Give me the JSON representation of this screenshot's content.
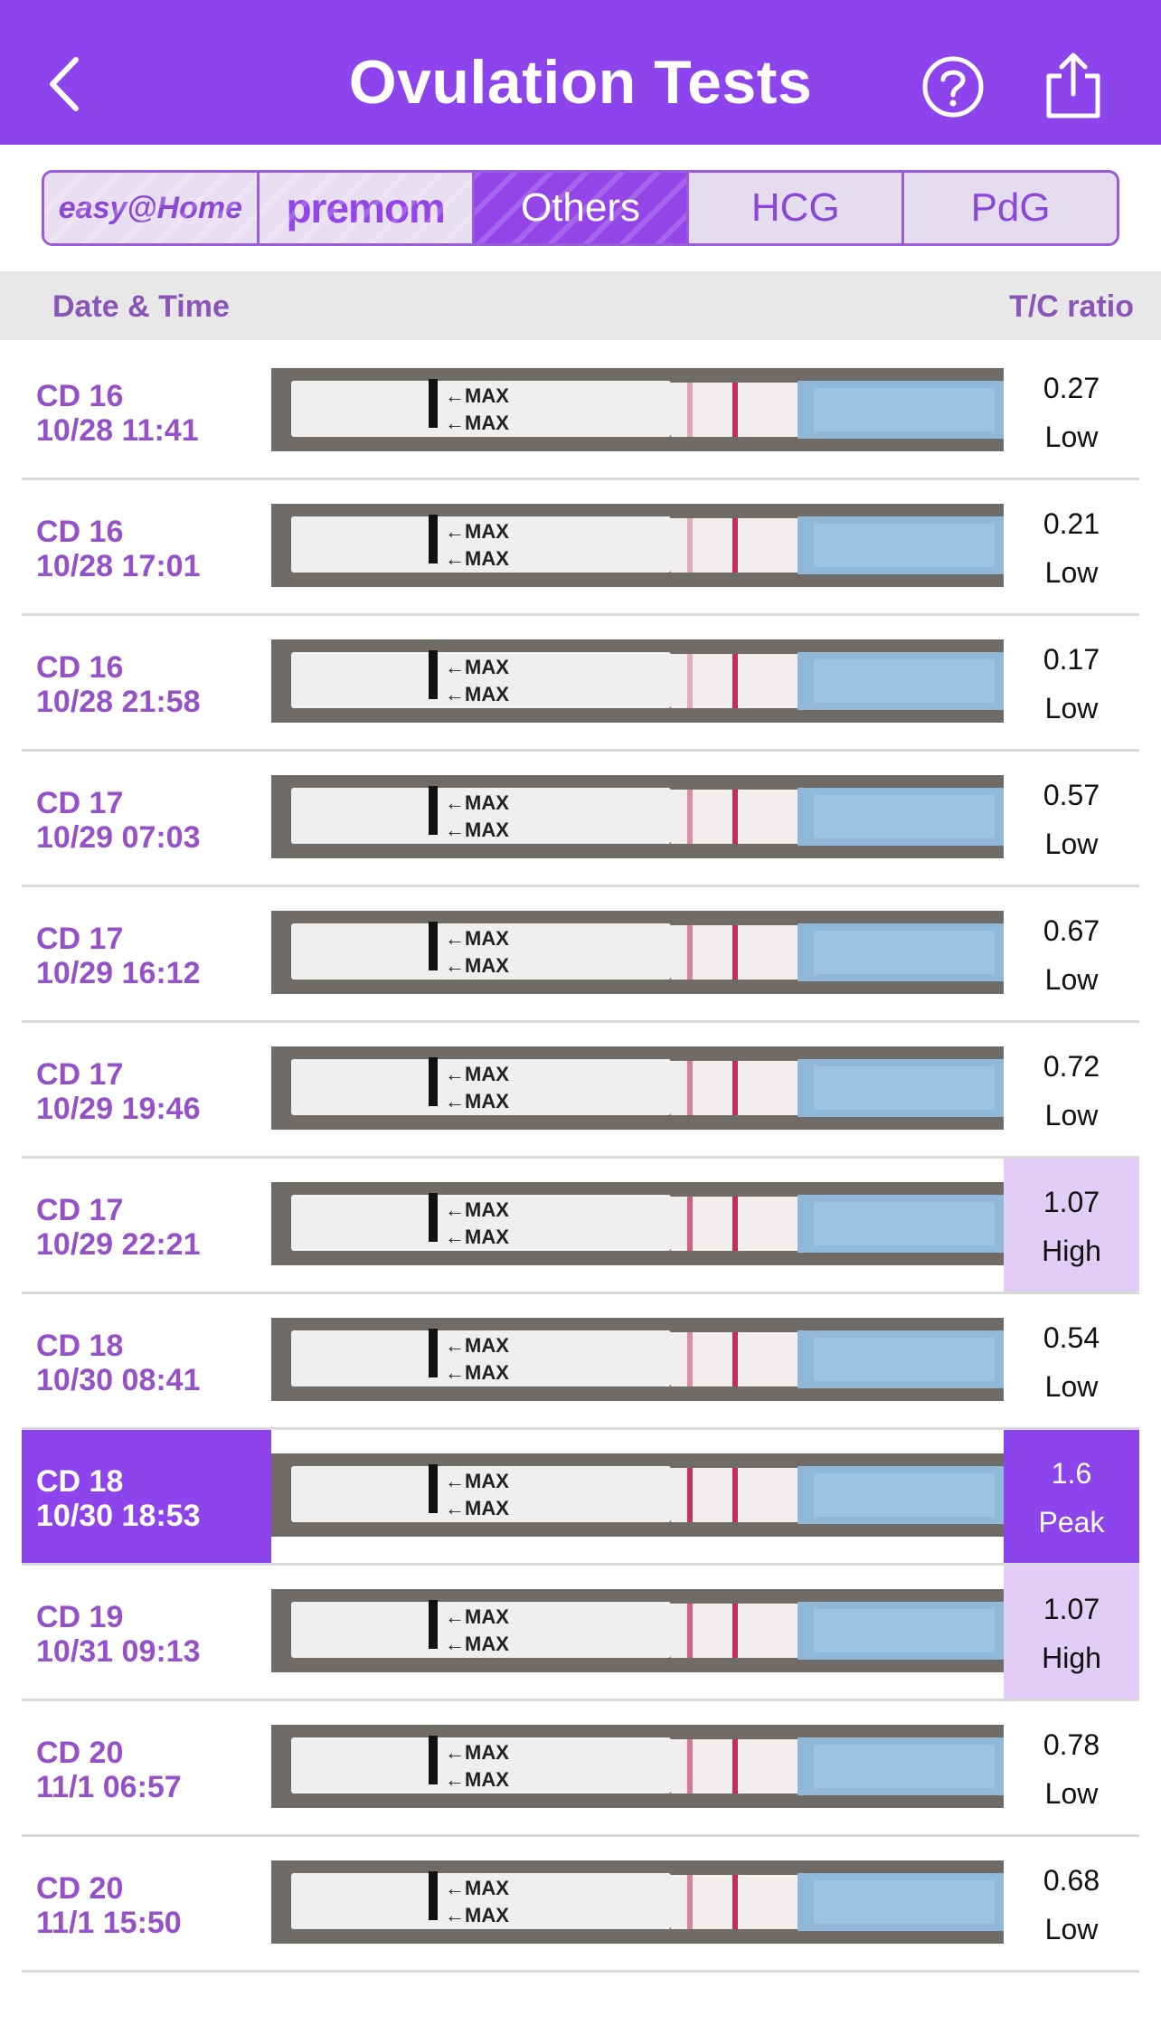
{
  "header": {
    "title": "Ovulation Tests",
    "back_icon": "chevron-left-icon",
    "help_icon": "help-circle-icon",
    "share_icon": "share-icon",
    "background": "#8e44ec"
  },
  "brand_tabs": [
    {
      "label": "easy@Home",
      "selected": false
    },
    {
      "label": "premom",
      "selected": false
    },
    {
      "label": "Others",
      "selected": true
    },
    {
      "label": "HCG",
      "selected": false
    },
    {
      "label": "PdG",
      "selected": false
    }
  ],
  "columns": {
    "date_time": "Date & Time",
    "ratio": "T/C ratio"
  },
  "colors": {
    "accent": "#8e44ec",
    "high_bg": "#e2cdf7",
    "label_purple": "#9551c9"
  },
  "strip_label": "←MAX",
  "tests": [
    {
      "cd": "CD 16",
      "datetime": "10/28 11:41",
      "ratio": "0.27",
      "level": "Low"
    },
    {
      "cd": "CD 16",
      "datetime": "10/28 17:01",
      "ratio": "0.21",
      "level": "Low"
    },
    {
      "cd": "CD 16",
      "datetime": "10/28 21:58",
      "ratio": "0.17",
      "level": "Low"
    },
    {
      "cd": "CD 17",
      "datetime": "10/29 07:03",
      "ratio": "0.57",
      "level": "Low"
    },
    {
      "cd": "CD 17",
      "datetime": "10/29 16:12",
      "ratio": "0.67",
      "level": "Low"
    },
    {
      "cd": "CD 17",
      "datetime": "10/29 19:46",
      "ratio": "0.72",
      "level": "Low"
    },
    {
      "cd": "CD 17",
      "datetime": "10/29 22:21",
      "ratio": "1.07",
      "level": "High"
    },
    {
      "cd": "CD 18",
      "datetime": "10/30 08:41",
      "ratio": "0.54",
      "level": "Low"
    },
    {
      "cd": "CD 18",
      "datetime": "10/30 18:53",
      "ratio": "1.6",
      "level": "Peak"
    },
    {
      "cd": "CD 19",
      "datetime": "10/31 09:13",
      "ratio": "1.07",
      "level": "High"
    },
    {
      "cd": "CD 20",
      "datetime": "11/1 06:57",
      "ratio": "0.78",
      "level": "Low"
    },
    {
      "cd": "CD 20",
      "datetime": "11/1 15:50",
      "ratio": "0.68",
      "level": "Low"
    }
  ]
}
